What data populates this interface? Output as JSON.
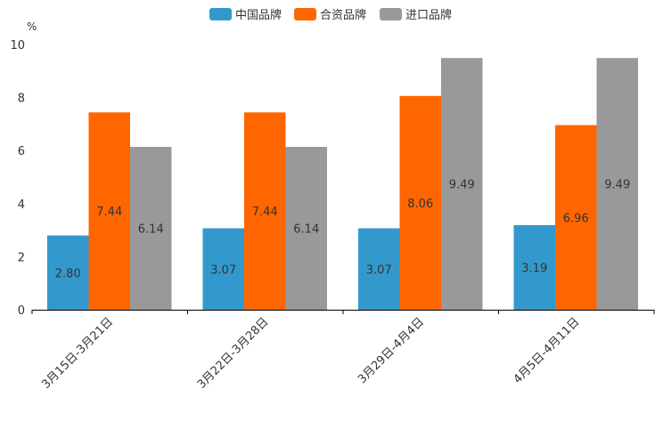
{
  "chart_data": {
    "type": "bar",
    "title": "",
    "unit_label": "%",
    "xlabel": "",
    "ylabel": "%",
    "ylim": [
      0,
      10
    ],
    "yticks": [
      0,
      2,
      4,
      6,
      8,
      10
    ],
    "legend_position": "top-center",
    "grid": false,
    "categories": [
      "3月15日-3月21日",
      "3月22日-3月28日",
      "3月29日-4月4日",
      "4月5日-4月11日"
    ],
    "series": [
      {
        "name": "中国品牌",
        "color": "#3399cc",
        "values": [
          2.8,
          3.07,
          3.07,
          3.19
        ],
        "labels": [
          "2.80",
          "3.07",
          "3.07",
          "3.19"
        ]
      },
      {
        "name": "合资品牌",
        "color": "#ff6600",
        "values": [
          7.44,
          7.44,
          8.06,
          6.96
        ],
        "labels": [
          "7.44",
          "7.44",
          "8.06",
          "6.96"
        ]
      },
      {
        "name": "进口品牌",
        "color": "#999999",
        "values": [
          6.14,
          6.14,
          9.49,
          9.49
        ],
        "labels": [
          "6.14",
          "6.14",
          "9.49",
          "9.49"
        ]
      }
    ]
  }
}
